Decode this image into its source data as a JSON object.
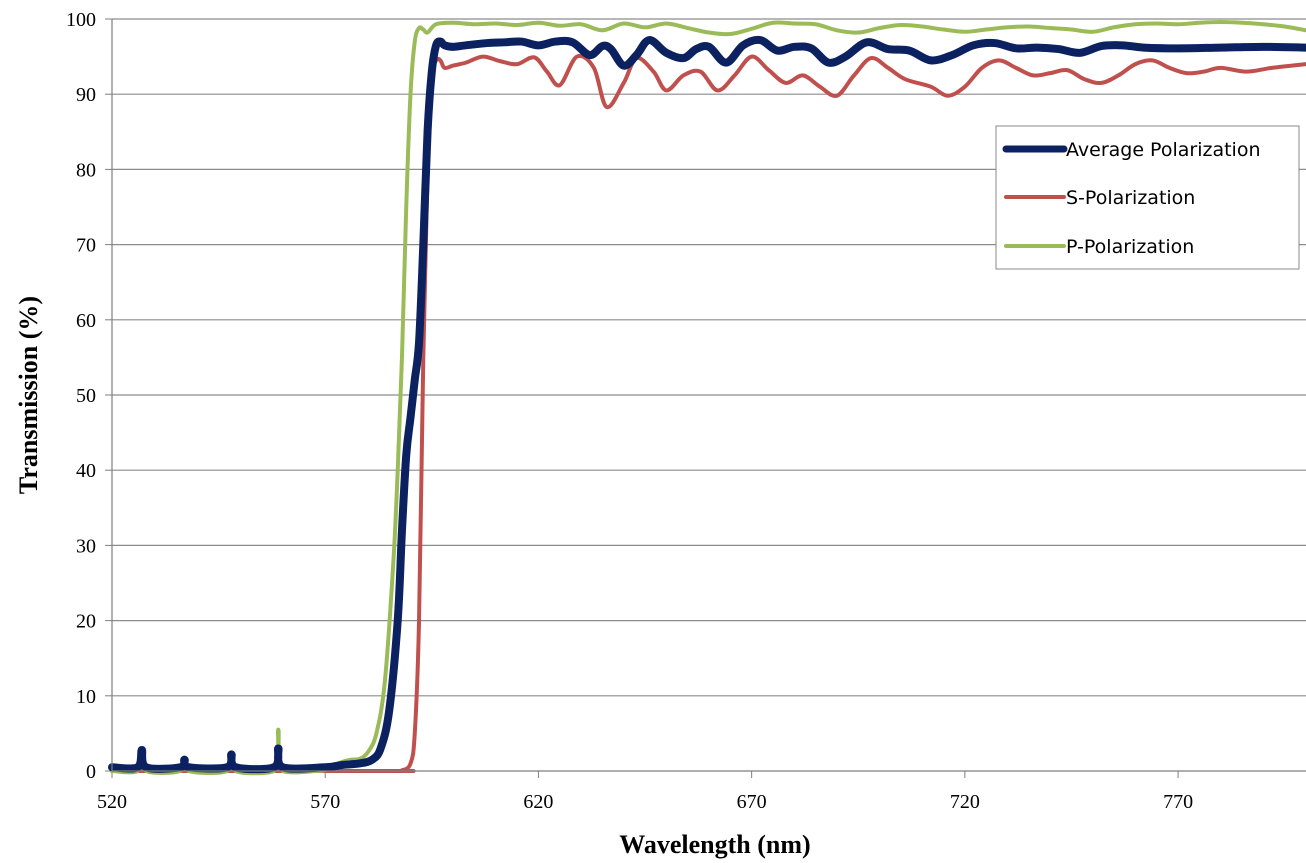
{
  "chart_data": {
    "type": "line",
    "xlabel": "Wavelength (nm)",
    "ylabel": "Transmission (%)",
    "xlim": [
      520,
      800
    ],
    "ylim": [
      0,
      100
    ],
    "x_ticks": [
      "520",
      "570",
      "620",
      "670",
      "720",
      "770"
    ],
    "y_ticks": [
      "0",
      "10",
      "20",
      "30",
      "40",
      "50",
      "60",
      "70",
      "80",
      "90",
      "100"
    ],
    "grid": "horizontal",
    "legend_position": "top-right",
    "series": [
      {
        "name": "Average Polarization",
        "color": "#0b2160",
        "points": [
          [
            520,
            0.5
          ],
          [
            526,
            0.5
          ],
          [
            527,
            2.8
          ],
          [
            528,
            0.5
          ],
          [
            536,
            0.5
          ],
          [
            537,
            1.5
          ],
          [
            538,
            0.5
          ],
          [
            547,
            0.5
          ],
          [
            548,
            2.2
          ],
          [
            549,
            0.5
          ],
          [
            558,
            0.5
          ],
          [
            559,
            3.0
          ],
          [
            560,
            0.5
          ],
          [
            570,
            0.5
          ],
          [
            574,
            0.8
          ],
          [
            578,
            1.0
          ],
          [
            581,
            1.5
          ],
          [
            583,
            3
          ],
          [
            585,
            8
          ],
          [
            587,
            20
          ],
          [
            588,
            32
          ],
          [
            589,
            42
          ],
          [
            590,
            47
          ],
          [
            591,
            52
          ],
          [
            592,
            57
          ],
          [
            593,
            70
          ],
          [
            594,
            85
          ],
          [
            595,
            93
          ],
          [
            596,
            96.5
          ],
          [
            597,
            97
          ],
          [
            598,
            96.5
          ],
          [
            600,
            96.3
          ],
          [
            603,
            96.5
          ],
          [
            608,
            96.8
          ],
          [
            612,
            96.9
          ],
          [
            616,
            97
          ],
          [
            620,
            96.5
          ],
          [
            624,
            97
          ],
          [
            628,
            96.9
          ],
          [
            632,
            95.2
          ],
          [
            635,
            96.4
          ],
          [
            637,
            96
          ],
          [
            640,
            93.8
          ],
          [
            643,
            95.2
          ],
          [
            646,
            97.2
          ],
          [
            650,
            95.5
          ],
          [
            654,
            94.8
          ],
          [
            657,
            96
          ],
          [
            660,
            96.3
          ],
          [
            664,
            94.2
          ],
          [
            668,
            96.5
          ],
          [
            672,
            97.2
          ],
          [
            676,
            95.8
          ],
          [
            680,
            96.3
          ],
          [
            684,
            96.1
          ],
          [
            688,
            94.2
          ],
          [
            692,
            95
          ],
          [
            697,
            96.9
          ],
          [
            702,
            96
          ],
          [
            707,
            95.8
          ],
          [
            712,
            94.5
          ],
          [
            717,
            95.2
          ],
          [
            722,
            96.5
          ],
          [
            727,
            96.8
          ],
          [
            732,
            96.1
          ],
          [
            737,
            96.2
          ],
          [
            742,
            96
          ],
          [
            747,
            95.5
          ],
          [
            752,
            96.4
          ],
          [
            757,
            96.5
          ],
          [
            762,
            96.2
          ],
          [
            770,
            96.1
          ],
          [
            780,
            96.2
          ],
          [
            790,
            96.3
          ],
          [
            800,
            96.2
          ]
        ]
      },
      {
        "name": "S-Polarization",
        "color": "#c0504d",
        "points": [
          [
            520,
            0
          ],
          [
            585,
            0
          ],
          [
            588,
            0.1
          ],
          [
            590,
            1
          ],
          [
            591,
            5
          ],
          [
            592,
            20
          ],
          [
            593,
            55
          ],
          [
            594,
            80
          ],
          [
            595,
            92
          ],
          [
            596,
            94.5
          ],
          [
            597,
            94.5
          ],
          [
            598,
            93.5
          ],
          [
            600,
            93.8
          ],
          [
            603,
            94.2
          ],
          [
            607,
            95.0
          ],
          [
            611,
            94.4
          ],
          [
            615,
            94.0
          ],
          [
            619,
            94.9
          ],
          [
            622,
            93
          ],
          [
            625,
            91.2
          ],
          [
            629,
            95.0
          ],
          [
            633,
            93.5
          ],
          [
            636,
            88.3
          ],
          [
            640,
            91.5
          ],
          [
            643,
            94.8
          ],
          [
            647,
            93.0
          ],
          [
            650,
            90.5
          ],
          [
            654,
            92.5
          ],
          [
            658,
            93.0
          ],
          [
            662,
            90.5
          ],
          [
            666,
            92.5
          ],
          [
            670,
            95.0
          ],
          [
            674,
            93.2
          ],
          [
            678,
            91.5
          ],
          [
            682,
            92.5
          ],
          [
            686,
            91.0
          ],
          [
            690,
            89.8
          ],
          [
            694,
            92.5
          ],
          [
            698,
            94.8
          ],
          [
            702,
            93.5
          ],
          [
            706,
            92.0
          ],
          [
            712,
            91.0
          ],
          [
            716,
            89.8
          ],
          [
            720,
            91.0
          ],
          [
            724,
            93.5
          ],
          [
            728,
            94.5
          ],
          [
            732,
            93.5
          ],
          [
            736,
            92.5
          ],
          [
            740,
            92.8
          ],
          [
            744,
            93.2
          ],
          [
            748,
            92.0
          ],
          [
            752,
            91.5
          ],
          [
            756,
            92.5
          ],
          [
            760,
            94.0
          ],
          [
            764,
            94.5
          ],
          [
            768,
            93.5
          ],
          [
            772,
            92.8
          ],
          [
            776,
            93.0
          ],
          [
            780,
            93.5
          ],
          [
            786,
            93.0
          ],
          [
            792,
            93.5
          ],
          [
            800,
            94.0
          ]
        ]
      },
      {
        "name": "P-Polarization",
        "color": "#9bbb59",
        "points": [
          [
            520,
            0
          ],
          [
            526,
            0
          ],
          [
            527,
            3
          ],
          [
            528,
            0
          ],
          [
            536,
            0
          ],
          [
            537,
            1.8
          ],
          [
            538,
            0
          ],
          [
            547,
            0
          ],
          [
            548,
            2.5
          ],
          [
            549,
            0
          ],
          [
            558,
            0
          ],
          [
            559,
            5.5
          ],
          [
            560,
            0
          ],
          [
            568,
            0
          ],
          [
            571,
            0.3
          ],
          [
            573,
            1.0
          ],
          [
            576,
            1.5
          ],
          [
            578,
            1.6
          ],
          [
            580,
            2.5
          ],
          [
            582,
            5
          ],
          [
            584,
            12
          ],
          [
            586,
            28
          ],
          [
            587,
            40
          ],
          [
            588,
            55
          ],
          [
            589,
            75
          ],
          [
            590,
            90
          ],
          [
            591,
            97
          ],
          [
            592,
            98.8
          ],
          [
            593,
            98.6
          ],
          [
            594,
            98.2
          ],
          [
            596,
            99.3
          ],
          [
            600,
            99.5
          ],
          [
            605,
            99.3
          ],
          [
            610,
            99.4
          ],
          [
            615,
            99.2
          ],
          [
            620,
            99.5
          ],
          [
            625,
            99.1
          ],
          [
            630,
            99.3
          ],
          [
            635,
            98.5
          ],
          [
            640,
            99.4
          ],
          [
            645,
            98.9
          ],
          [
            650,
            99.4
          ],
          [
            655,
            98.8
          ],
          [
            660,
            98.2
          ],
          [
            665,
            98.0
          ],
          [
            670,
            98.7
          ],
          [
            675,
            99.5
          ],
          [
            680,
            99.4
          ],
          [
            685,
            99.3
          ],
          [
            690,
            98.5
          ],
          [
            695,
            98.2
          ],
          [
            700,
            98.8
          ],
          [
            705,
            99.2
          ],
          [
            710,
            99.0
          ],
          [
            715,
            98.6
          ],
          [
            720,
            98.3
          ],
          [
            725,
            98.6
          ],
          [
            730,
            98.9
          ],
          [
            735,
            99.0
          ],
          [
            740,
            98.8
          ],
          [
            745,
            98.6
          ],
          [
            750,
            98.3
          ],
          [
            755,
            98.9
          ],
          [
            760,
            99.3
          ],
          [
            765,
            99.4
          ],
          [
            770,
            99.3
          ],
          [
            775,
            99.5
          ],
          [
            780,
            99.6
          ],
          [
            785,
            99.5
          ],
          [
            790,
            99.3
          ],
          [
            795,
            99.0
          ],
          [
            800,
            98.5
          ]
        ]
      }
    ]
  }
}
